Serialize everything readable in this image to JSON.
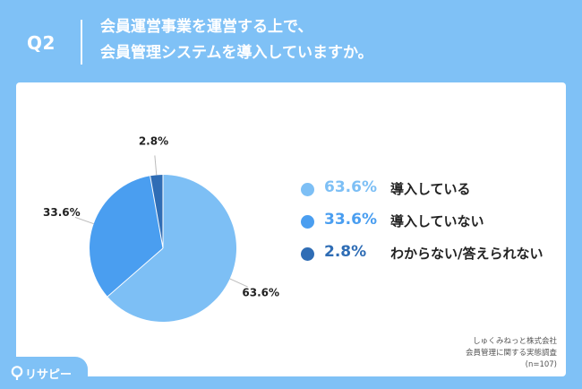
{
  "header": {
    "question_number": "Q2",
    "title_line1": "会員運営事業を運営する上で、",
    "title_line2": "会員管理システムを導入していますか。"
  },
  "chart_data": {
    "type": "pie",
    "start": "top",
    "direction": "clockwise",
    "slices": [
      {
        "label": "導入している",
        "value": 63.6,
        "display": "63.6%",
        "color": "#7dbff5"
      },
      {
        "label": "導入していない",
        "value": 33.6,
        "display": "33.6%",
        "color": "#4a9ef0"
      },
      {
        "label": "わからない/答えられない",
        "value": 2.8,
        "display": "2.8%",
        "color": "#2f6db5"
      }
    ]
  },
  "source": {
    "line1": "しゅくみねっと株式会社",
    "line2": "会員管理に関する実態調査",
    "line3": "(n=107)"
  },
  "logo": {
    "text": "リサピー"
  }
}
